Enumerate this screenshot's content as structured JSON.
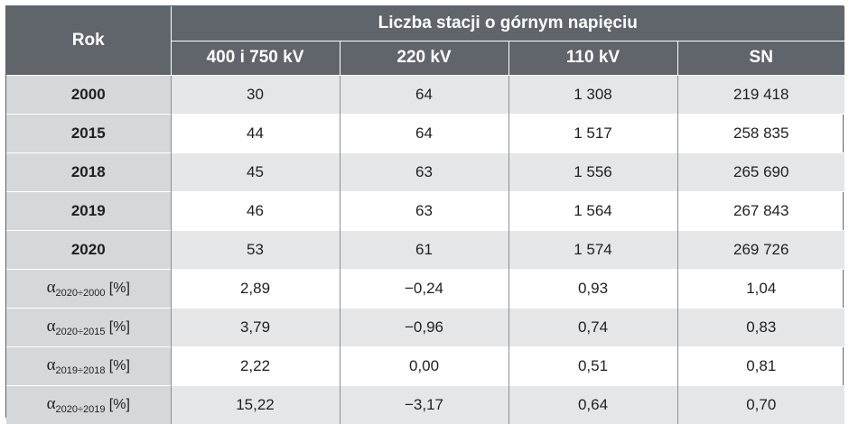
{
  "table": {
    "header_rok": "Rok",
    "header_group": "Liczba stacji o górnym napięciu",
    "columns": [
      "400 i 750 kV",
      "220 kV",
      "110 kV",
      "SN"
    ],
    "rows": [
      {
        "label": "2000",
        "values": [
          "30",
          "64",
          "1 308",
          "219 418"
        ]
      },
      {
        "label": "2015",
        "values": [
          "44",
          "64",
          "1 517",
          "258 835"
        ]
      },
      {
        "label": "2018",
        "values": [
          "45",
          "63",
          "1 556",
          "265 690"
        ]
      },
      {
        "label": "2019",
        "values": [
          "46",
          "63",
          "1 564",
          "267 843"
        ]
      },
      {
        "label": "2020",
        "values": [
          "53",
          "61",
          "1 574",
          "269 726"
        ]
      }
    ],
    "alpha_rows": [
      {
        "symbol": "α",
        "subscript": "2020÷2000",
        "unit": "[%]",
        "values": [
          "2,89",
          "−0,24",
          "0,93",
          "1,04"
        ]
      },
      {
        "symbol": "α",
        "subscript": "2020÷2015",
        "unit": "[%]",
        "values": [
          "3,79",
          "−0,96",
          "0,74",
          "0,83"
        ]
      },
      {
        "symbol": "α",
        "subscript": "2019÷2018",
        "unit": "[%]",
        "values": [
          "2,22",
          "0,00",
          "0,51",
          "0,81"
        ]
      },
      {
        "symbol": "α",
        "subscript": "2020÷2019",
        "unit": "[%]",
        "values": [
          "15,22",
          "−3,17",
          "0,64",
          "0,70"
        ]
      }
    ]
  }
}
